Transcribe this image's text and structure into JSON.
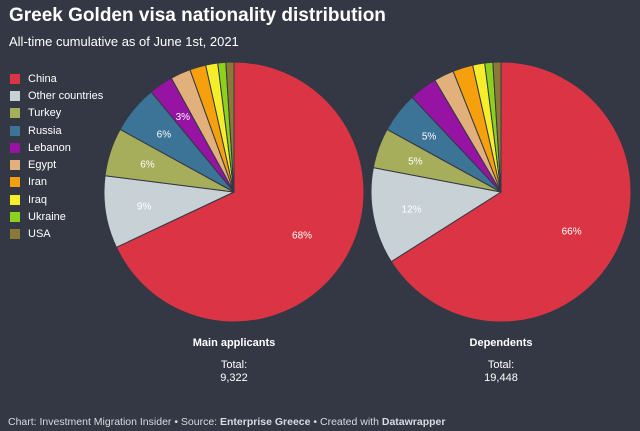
{
  "header": {
    "title": "Greek Golden visa nationality distribution",
    "subtitle": "All-time cumulative as of June 1st, 2021"
  },
  "legend": [
    {
      "label": "China",
      "color": "#db3545"
    },
    {
      "label": "Other countries",
      "color": "#c7d1d6"
    },
    {
      "label": "Turkey",
      "color": "#a6ae5b"
    },
    {
      "label": "Russia",
      "color": "#3b7496"
    },
    {
      "label": "Lebanon",
      "color": "#9613a3"
    },
    {
      "label": "Egypt",
      "color": "#e2b07a"
    },
    {
      "label": "Iran",
      "color": "#f5a00c"
    },
    {
      "label": "Iraq",
      "color": "#f6ee2a"
    },
    {
      "label": "Ukraine",
      "color": "#8dd11c"
    },
    {
      "label": "USA",
      "color": "#8b7a36"
    }
  ],
  "chart_data": {
    "type": "pie",
    "categories": [
      "China",
      "Other countries",
      "Turkey",
      "Russia",
      "Lebanon",
      "Egypt",
      "Iran",
      "Iraq",
      "Ukraine",
      "USA"
    ],
    "series": [
      {
        "name": "Main applicants",
        "values": [
          68,
          9,
          6,
          6,
          3,
          2.5,
          2,
          1.5,
          1,
          1
        ],
        "data_labels": [
          "68%",
          "9%",
          "6%",
          "6%",
          "3%",
          "",
          "",
          "",
          "",
          ""
        ],
        "total_label": "Total:",
        "total": "9,322"
      },
      {
        "name": "Dependents",
        "values": [
          66,
          12,
          5,
          5,
          3.5,
          2.5,
          2.5,
          1.5,
          1,
          1
        ],
        "data_labels": [
          "66%",
          "12%",
          "5%",
          "5%",
          "",
          "",
          "",
          "",
          "",
          ""
        ],
        "total_label": "Total:",
        "total": "19,448"
      }
    ]
  },
  "footer": {
    "prefix": "Chart: Investment Migration Insider • Source: ",
    "source": "Enterprise Greece",
    "middle": " • Created with ",
    "tool": "Datawrapper"
  }
}
